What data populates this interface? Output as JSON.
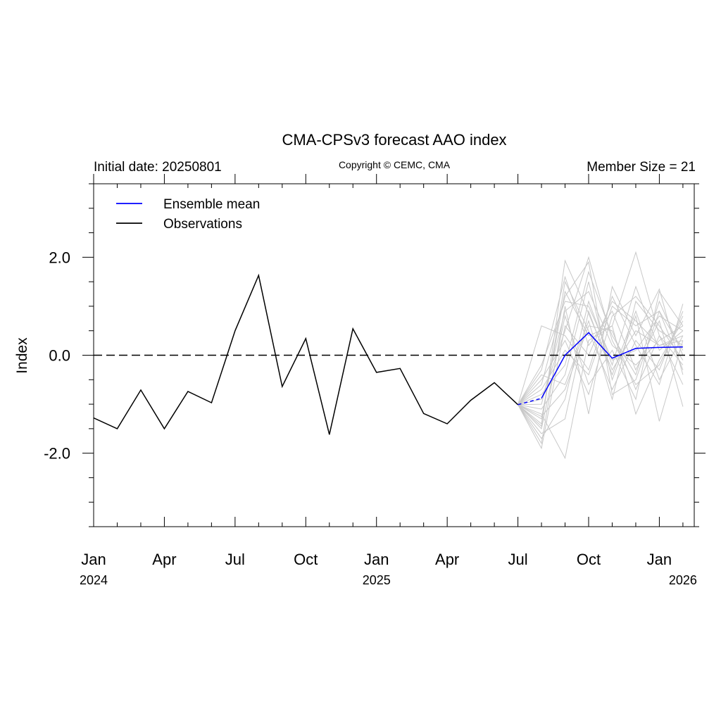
{
  "chart_data": {
    "type": "line",
    "title": "CMA-CPSv3 forecast AAO index",
    "subtitle_left": "Initial date: 20250801",
    "subtitle_center": "Copyright © CEMC, CMA",
    "subtitle_right": "Member Size = 21",
    "ylabel": "Index",
    "xlabel": "",
    "ylim": [
      -3.5,
      3.5
    ],
    "xlim": [
      "2024-01",
      "2026-02"
    ],
    "grid": false,
    "zero_line": {
      "y": 0.0,
      "style": "dashed"
    },
    "y_ticks": [
      {
        "value": 2.0,
        "label": "2.0"
      },
      {
        "value": 0.0,
        "label": "0.0"
      },
      {
        "value": -2.0,
        "label": "-2.0"
      }
    ],
    "x_ticks": [
      {
        "date": "2024-01",
        "label": "Jan",
        "year": "2024"
      },
      {
        "date": "2024-04",
        "label": "Apr",
        "year": ""
      },
      {
        "date": "2024-07",
        "label": "Jul",
        "year": ""
      },
      {
        "date": "2024-10",
        "label": "Oct",
        "year": ""
      },
      {
        "date": "2025-01",
        "label": "Jan",
        "year": "2025"
      },
      {
        "date": "2025-04",
        "label": "Apr",
        "year": ""
      },
      {
        "date": "2025-07",
        "label": "Jul",
        "year": ""
      },
      {
        "date": "2025-10",
        "label": "Oct",
        "year": ""
      },
      {
        "date": "2026-01",
        "label": "Jan",
        "year": "2026"
      }
    ],
    "year_under_last_month": "2026",
    "legend": {
      "placement": "top-left",
      "entries": [
        {
          "label": "Ensemble mean",
          "color": "#0000ff"
        },
        {
          "label": "Observations",
          "color": "#000000"
        }
      ]
    },
    "series": [
      {
        "name": "Observations",
        "color": "#000000",
        "x": [
          "2024-01",
          "2024-02",
          "2024-03",
          "2024-04",
          "2024-05",
          "2024-06",
          "2024-07",
          "2024-08",
          "2024-09",
          "2024-10",
          "2024-11",
          "2024-12",
          "2025-01",
          "2025-02",
          "2025-03",
          "2025-04",
          "2025-05",
          "2025-06",
          "2025-07"
        ],
        "values": [
          -1.28,
          -1.5,
          -0.71,
          -1.5,
          -0.74,
          -0.97,
          0.5,
          1.63,
          -0.64,
          0.34,
          -1.62,
          0.54,
          -0.35,
          -0.27,
          -1.19,
          -1.4,
          -0.92,
          -0.56,
          -1.01
        ]
      },
      {
        "name": "Ensemble mean",
        "color": "#0000ff",
        "dashed_first_segment": true,
        "x": [
          "2025-07",
          "2025-08",
          "2025-09",
          "2025-10",
          "2025-11",
          "2025-12",
          "2026-01",
          "2026-02"
        ],
        "values": [
          -1.01,
          -0.88,
          0.0,
          0.46,
          -0.06,
          0.14,
          0.16,
          0.17
        ]
      }
    ],
    "members": {
      "color": "#c8c8c8",
      "x": [
        "2025-07",
        "2025-08",
        "2025-09",
        "2025-10",
        "2025-11",
        "2025-12",
        "2026-01",
        "2026-02"
      ],
      "values": [
        [
          -1.01,
          -1.45,
          1.93,
          0.85,
          -0.3,
          0.5,
          0.2,
          0.4
        ],
        [
          -1.01,
          -0.6,
          1.2,
          1.9,
          -0.8,
          -0.5,
          0.9,
          0.1
        ],
        [
          -1.01,
          -1.2,
          -2.1,
          0.3,
          0.6,
          2.1,
          0.4,
          -0.2
        ],
        [
          -1.01,
          0.6,
          0.4,
          -0.3,
          1.2,
          0.2,
          -0.6,
          1.05
        ],
        [
          -1.01,
          -1.5,
          0.8,
          -0.6,
          0.1,
          -0.9,
          1.3,
          0.6
        ],
        [
          -1.01,
          -1.1,
          -0.4,
          1.5,
          -0.5,
          0.8,
          -1.35,
          0.3
        ],
        [
          -1.01,
          -0.3,
          1.6,
          0.2,
          0.9,
          -0.3,
          0.7,
          -1.05
        ],
        [
          -1.01,
          -1.7,
          -0.9,
          1.1,
          -0.2,
          1.4,
          0.1,
          0.5
        ],
        [
          -1.01,
          -0.9,
          0.5,
          2.0,
          0.3,
          -0.6,
          -0.2,
          0.8
        ],
        [
          -1.01,
          -1.8,
          1.0,
          -1.2,
          1.4,
          0.4,
          1.35,
          -0.4
        ],
        [
          -1.01,
          -0.4,
          -0.6,
          0.7,
          -0.9,
          1.1,
          0.5,
          0.2
        ],
        [
          -1.01,
          -1.3,
          1.3,
          0.4,
          0.6,
          -1.2,
          -0.1,
          0.7
        ],
        [
          -1.01,
          -0.7,
          0.1,
          -0.4,
          1.0,
          0.6,
          0.9,
          -0.3
        ],
        [
          -1.01,
          -1.6,
          -1.3,
          0.9,
          -0.4,
          0.9,
          -0.5,
          0.4
        ],
        [
          -1.01,
          -1.0,
          0.9,
          1.3,
          0.2,
          -0.2,
          0.3,
          0.6
        ],
        [
          -1.01,
          -0.5,
          0.3,
          -0.8,
          0.8,
          1.2,
          0.6,
          -0.1
        ],
        [
          -1.01,
          -1.4,
          1.5,
          0.5,
          -0.7,
          0.3,
          -0.3,
          0.9
        ],
        [
          -1.01,
          -0.8,
          -0.2,
          1.7,
          0.4,
          -0.4,
          1.1,
          0.0
        ],
        [
          -1.01,
          -1.9,
          0.6,
          0.0,
          1.1,
          0.7,
          0.2,
          0.3
        ],
        [
          -1.01,
          -0.2,
          1.1,
          1.0,
          -0.1,
          0.1,
          0.8,
          0.5
        ],
        [
          -1.01,
          -1.25,
          -0.7,
          0.6,
          0.5,
          -0.7,
          0.4,
          -0.6
        ]
      ]
    }
  }
}
